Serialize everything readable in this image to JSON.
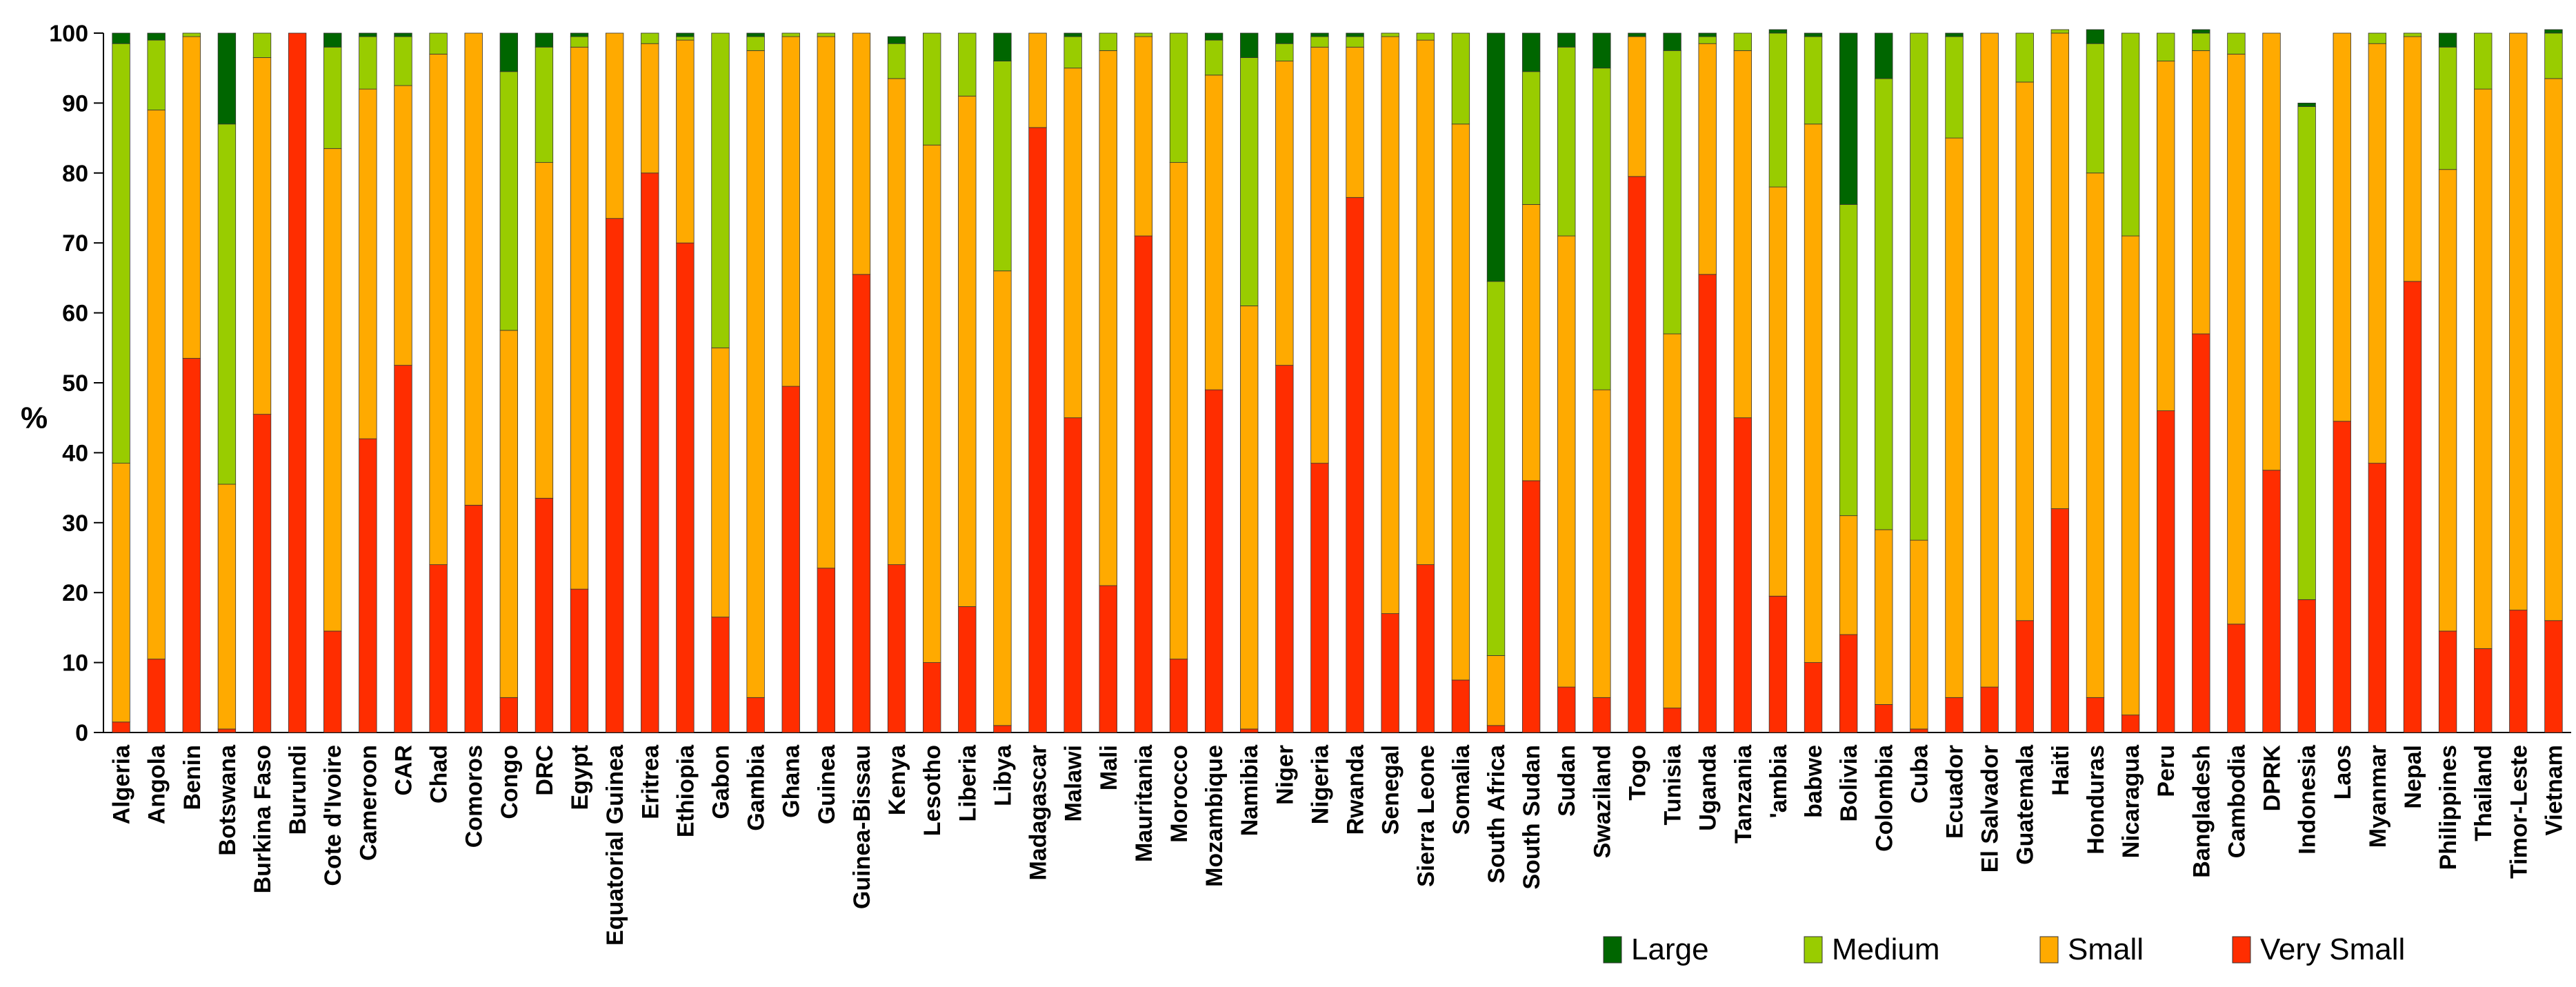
{
  "chart_data": {
    "type": "bar",
    "stacked": true,
    "title": "",
    "xlabel": "",
    "ylabel": "%",
    "ylim": [
      0,
      100
    ],
    "yticks": [
      0,
      10,
      20,
      30,
      40,
      50,
      60,
      70,
      80,
      90,
      100
    ],
    "legend_position": "bottom-right",
    "colors": {
      "Very Small": "#ff2d00",
      "Small": "#ffaa00",
      "Medium": "#99cc00",
      "Large": "#006600"
    },
    "legend_order": [
      "Large",
      "Medium",
      "Small",
      "Very Small"
    ],
    "stack_order": [
      "Very Small",
      "Small",
      "Medium",
      "Large"
    ],
    "categories": [
      "Algeria",
      "Angola",
      "Benin",
      "Botswana",
      "Burkina Faso",
      "Burundi",
      "Cote d'Ivoire",
      "Cameroon",
      "CAR",
      "Chad",
      "Comoros",
      "Congo",
      "DRC",
      "Egypt",
      "Equatorial Guinea",
      "Eritrea",
      "Ethiopia",
      "Gabon",
      "Gambia",
      "Ghana",
      "Guinea",
      "Guinea-Bissau",
      "Kenya",
      "Lesotho",
      "Liberia",
      "Libya",
      "Madagascar",
      "Malawi",
      "Mali",
      "Mauritania",
      "Morocco",
      "Mozambique",
      "Namibia",
      "Niger",
      "Nigeria",
      "Rwanda",
      "Senegal",
      "Sierra Leone",
      "Somalia",
      "South Africa",
      "South Sudan",
      "Sudan",
      "Swaziland",
      "Togo",
      "Tunisia",
      "Uganda",
      "Tanzania",
      "Zambia",
      "Zimbabwe",
      "Bolivia",
      "Colombia",
      "Cuba",
      "Ecuador",
      "El Salvador",
      "Guatemala",
      "Haiti",
      "Honduras",
      "Nicaragua",
      "Peru",
      "Bangladesh",
      "Cambodia",
      "DPRK",
      "Indonesia",
      "Laos",
      "Myanmar",
      "Nepal",
      "Philippines",
      "Thailand",
      "Timor-Leste",
      "Vietnam"
    ],
    "category_labels": [
      "Algeria",
      "Angola",
      "Benin",
      "Botswana",
      "Burkina Faso",
      "Burundi",
      "Cote d'Ivoire",
      "Cameroon",
      "CAR",
      "Chad",
      "Comoros",
      "Congo",
      "DRC",
      "Egypt",
      "Equatorial Guinea",
      "Eritrea",
      "Ethiopia",
      "Gabon",
      "Gambia",
      "Ghana",
      "Guinea",
      "Guinea-Bissau",
      "Kenya",
      "Lesotho",
      "Liberia",
      "Libya",
      "Madagascar",
      "Malawi",
      "Mali",
      "Mauritania",
      "Morocco",
      "Mozambique",
      "Namibia",
      "Niger",
      "Nigeria",
      "Rwanda",
      "Senegal",
      "Sierra Leone",
      "Somalia",
      "South Africa",
      "South Sudan",
      "Sudan",
      "Swaziland",
      "Togo",
      "Tunisia",
      "Uganda",
      "Tanzania",
      "'ambia",
      "babwe",
      "Bolivia",
      "Colombia",
      "Cuba",
      "Ecuador",
      "El Salvador",
      "Guatemala",
      "Haiti",
      "Honduras",
      "Nicaragua",
      "Peru",
      "Bangladesh",
      "Cambodia",
      "DPRK",
      "Indonesia",
      "Laos",
      "Myanmar",
      "Nepal",
      "Philippines",
      "Thailand",
      "Timor-Leste",
      "Vietnam"
    ],
    "series": [
      {
        "name": "Very Small",
        "values": [
          1.5,
          10.5,
          53.5,
          0.5,
          45.5,
          100,
          14.5,
          42,
          52.5,
          24,
          32.5,
          5,
          33.5,
          20.5,
          73.5,
          80,
          70,
          16.5,
          5,
          49.5,
          23.5,
          65.5,
          24,
          10,
          18,
          1,
          86.5,
          45,
          21,
          71,
          10.5,
          49,
          0.5,
          52.5,
          38.5,
          76.5,
          17,
          24,
          7.5,
          1,
          36,
          6.5,
          5,
          79.5,
          3.5,
          65.5,
          45,
          19.5,
          10,
          14,
          4,
          0.5,
          5,
          6.5,
          16,
          32,
          5,
          2.5,
          46,
          57,
          15.5,
          37.5,
          19,
          44.5,
          38.5,
          64.5,
          14.5,
          12,
          17.5,
          16
        ]
      },
      {
        "name": "Small",
        "values": [
          37,
          78.5,
          46,
          35,
          51,
          0,
          69,
          50,
          40,
          73,
          67.5,
          52.5,
          48,
          77.5,
          26.5,
          18.5,
          29,
          38.5,
          92.5,
          50,
          76,
          34.5,
          69.5,
          74,
          73,
          65,
          13.5,
          50,
          76.5,
          28.5,
          71,
          45,
          60.5,
          43.5,
          59.5,
          21.5,
          82.5,
          75,
          79.5,
          10,
          39.5,
          64.5,
          44,
          20,
          53.5,
          33,
          52.5,
          58.5,
          77,
          17,
          25,
          27,
          80,
          93.5,
          77,
          68,
          75,
          68.5,
          50,
          40.5,
          81.5,
          62.5,
          0,
          55.5,
          60,
          35,
          66,
          80,
          82.5,
          77.5
        ]
      },
      {
        "name": "Medium",
        "values": [
          60,
          10,
          0.5,
          51.5,
          3.5,
          0,
          14.5,
          7.5,
          7,
          3,
          0,
          37,
          16.5,
          1.5,
          0,
          1.5,
          0.5,
          45,
          2,
          0.5,
          0.5,
          0,
          5,
          16,
          9,
          30,
          0,
          4.5,
          2.5,
          0.5,
          18.5,
          5,
          35.5,
          2.5,
          1.5,
          1.5,
          0.5,
          1,
          13,
          53.5,
          19,
          27,
          46,
          0,
          40.5,
          1,
          2.5,
          22,
          12.5,
          44.5,
          64.5,
          72.5,
          14.5,
          0,
          7,
          0.5,
          18.5,
          29,
          4,
          2.5,
          3,
          0,
          70.5,
          0,
          1.5,
          0.5,
          17.5,
          8,
          0,
          6.5
        ]
      },
      {
        "name": "Large",
        "values": [
          1.5,
          1,
          0,
          13,
          0,
          0,
          2,
          0.5,
          0.5,
          0,
          0,
          5.5,
          2,
          0.5,
          0,
          0,
          0.5,
          0,
          0.5,
          0,
          0,
          0,
          1,
          0,
          0,
          4,
          0,
          0.5,
          0,
          0,
          0,
          1,
          3.5,
          1.5,
          0.5,
          0.5,
          0,
          0,
          0,
          35.5,
          5.5,
          2,
          5,
          0.5,
          2.5,
          0.5,
          0,
          0.5,
          0.5,
          24.5,
          6.5,
          0,
          0.5,
          0,
          0,
          0,
          2,
          0,
          0,
          0.5,
          0,
          0,
          0.5,
          0,
          0,
          0,
          2,
          0,
          0,
          0.5
        ]
      }
    ]
  }
}
